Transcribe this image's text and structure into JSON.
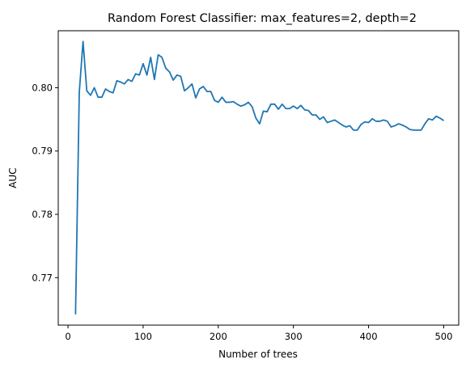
{
  "chart_data": {
    "type": "line",
    "title": "Random Forest Classifier: max_features=2, depth=2",
    "xlabel": "Number of trees",
    "ylabel": "AUC",
    "xlim": [
      -13,
      520
    ],
    "ylim": [
      0.7625,
      0.809
    ],
    "xticks": [
      0,
      100,
      200,
      300,
      400,
      500
    ],
    "yticks": [
      0.77,
      0.78,
      0.79,
      0.8
    ],
    "ytick_labels": [
      "0.77",
      "0.78",
      "0.79",
      "0.80"
    ],
    "grid": false,
    "color": "#1f77b4",
    "x": [
      10,
      15,
      20,
      25,
      30,
      35,
      40,
      45,
      50,
      55,
      60,
      65,
      70,
      75,
      80,
      85,
      90,
      95,
      100,
      105,
      110,
      115,
      120,
      125,
      130,
      135,
      140,
      145,
      150,
      155,
      160,
      165,
      170,
      175,
      180,
      185,
      190,
      195,
      200,
      205,
      210,
      215,
      220,
      225,
      230,
      235,
      240,
      245,
      250,
      255,
      260,
      265,
      270,
      275,
      280,
      285,
      290,
      295,
      300,
      305,
      310,
      315,
      320,
      325,
      330,
      335,
      340,
      345,
      350,
      355,
      360,
      365,
      370,
      375,
      380,
      385,
      390,
      395,
      400,
      405,
      410,
      415,
      420,
      425,
      430,
      435,
      440,
      445,
      450,
      455,
      460,
      465,
      470,
      475,
      480,
      485,
      490,
      495,
      500
    ],
    "y": [
      0.7642,
      0.7993,
      0.8073,
      0.7995,
      0.7988,
      0.8,
      0.7985,
      0.7985,
      0.7998,
      0.7994,
      0.7992,
      0.8011,
      0.8009,
      0.8006,
      0.8013,
      0.801,
      0.8022,
      0.802,
      0.8038,
      0.802,
      0.8048,
      0.8013,
      0.8052,
      0.8048,
      0.8031,
      0.8025,
      0.8012,
      0.802,
      0.8018,
      0.7995,
      0.8,
      0.8006,
      0.7984,
      0.7998,
      0.8002,
      0.7994,
      0.7994,
      0.798,
      0.7977,
      0.7985,
      0.7977,
      0.7977,
      0.7978,
      0.7974,
      0.7971,
      0.7973,
      0.7977,
      0.797,
      0.7952,
      0.7943,
      0.7963,
      0.7962,
      0.7974,
      0.7974,
      0.7966,
      0.7974,
      0.7967,
      0.7967,
      0.7971,
      0.7967,
      0.7972,
      0.7965,
      0.7964,
      0.7957,
      0.7957,
      0.795,
      0.7954,
      0.7945,
      0.7947,
      0.7949,
      0.7945,
      0.7941,
      0.7938,
      0.794,
      0.7933,
      0.7933,
      0.7942,
      0.7946,
      0.7945,
      0.7951,
      0.7947,
      0.7947,
      0.7949,
      0.7947,
      0.7938,
      0.794,
      0.7943,
      0.7941,
      0.7938,
      0.7934,
      0.7933,
      0.7933,
      0.7933,
      0.7943,
      0.7951,
      0.7949,
      0.7955,
      0.7952,
      0.7948
    ]
  }
}
